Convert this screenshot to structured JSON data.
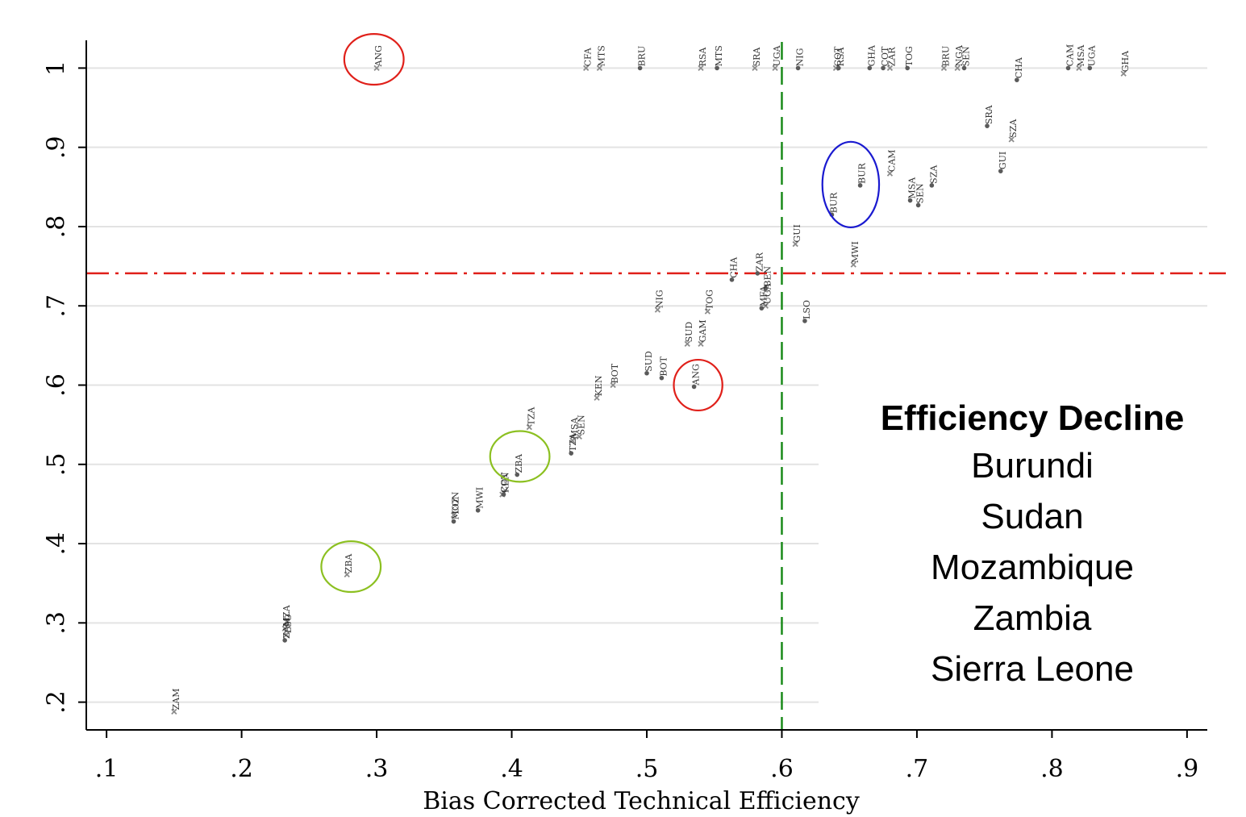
{
  "chart_data": {
    "type": "scatter",
    "xlabel": "Bias Corrected  Technical Efficiency",
    "ylabel": "",
    "xlim": [
      0.085,
      0.915
    ],
    "ylim": [
      0.165,
      1.035
    ],
    "x_ticks": [
      0.1,
      0.2,
      0.3,
      0.4,
      0.5,
      0.6,
      0.7,
      0.8,
      0.9
    ],
    "x_tick_labels": [
      ".1",
      ".2",
      ".3",
      ".4",
      ".5",
      ".6",
      ".7",
      ".8",
      ".9"
    ],
    "y_ticks": [
      0.2,
      0.3,
      0.4,
      0.5,
      0.6,
      0.7,
      0.8,
      0.9,
      1.0
    ],
    "y_tick_labels": [
      ".2",
      ".3",
      ".4",
      ".5",
      ".6",
      ".7",
      ".8",
      ".9",
      "1"
    ],
    "grid": "horizontal",
    "reference_lines": [
      {
        "orientation": "vertical",
        "value": 0.6,
        "color": "#1a8a1a",
        "style": "dashed"
      },
      {
        "orientation": "horizontal",
        "value": 0.741,
        "color": "#e0201a",
        "style": "dash-dot"
      }
    ],
    "series": [
      {
        "marker": "x",
        "color": "#8c8c8c",
        "points": [
          {
            "x": 0.3,
            "y": 1.0,
            "label": "ANG"
          },
          {
            "x": 0.455,
            "y": 1.0,
            "label": "CFA"
          },
          {
            "x": 0.465,
            "y": 1.0,
            "label": "MTS"
          },
          {
            "x": 0.54,
            "y": 1.0,
            "label": "RSA"
          },
          {
            "x": 0.58,
            "y": 1.0,
            "label": "SRA"
          },
          {
            "x": 0.595,
            "y": 1.0,
            "label": "UGA"
          },
          {
            "x": 0.68,
            "y": 1.0,
            "label": "ZAR"
          },
          {
            "x": 0.73,
            "y": 1.0,
            "label": "NGA"
          },
          {
            "x": 0.64,
            "y": 1.0,
            "label": "COT"
          },
          {
            "x": 0.72,
            "y": 1.0,
            "label": "BRU"
          },
          {
            "x": 0.82,
            "y": 1.0,
            "label": "MSA"
          },
          {
            "x": 0.853,
            "y": 0.993,
            "label": "GHA"
          },
          {
            "x": 0.77,
            "y": 0.91,
            "label": "SZA"
          },
          {
            "x": 0.68,
            "y": 0.867,
            "label": "CAM"
          },
          {
            "x": 0.61,
            "y": 0.778,
            "label": "GUI"
          },
          {
            "x": 0.653,
            "y": 0.752,
            "label": "MWI"
          },
          {
            "x": 0.508,
            "y": 0.695,
            "label": "NIG"
          },
          {
            "x": 0.545,
            "y": 0.693,
            "label": "TOG"
          },
          {
            "x": 0.54,
            "y": 0.652,
            "label": "GAM"
          },
          {
            "x": 0.53,
            "y": 0.652,
            "label": "SUD"
          },
          {
            "x": 0.588,
            "y": 0.7,
            "label": "UGA"
          },
          {
            "x": 0.475,
            "y": 0.6,
            "label": "BOT"
          },
          {
            "x": 0.463,
            "y": 0.584,
            "label": "KEN"
          },
          {
            "x": 0.413,
            "y": 0.547,
            "label": "TZA"
          },
          {
            "x": 0.45,
            "y": 0.535,
            "label": "SEN"
          },
          {
            "x": 0.445,
            "y": 0.53,
            "label": "MSA"
          },
          {
            "x": 0.393,
            "y": 0.462,
            "label": "COT"
          },
          {
            "x": 0.357,
            "y": 0.436,
            "label": "CON"
          },
          {
            "x": 0.278,
            "y": 0.361,
            "label": "ZBA"
          },
          {
            "x": 0.232,
            "y": 0.293,
            "label": "MZA"
          },
          {
            "x": 0.233,
            "y": 0.285,
            "label": "LSO"
          },
          {
            "x": 0.15,
            "y": 0.188,
            "label": "ZAM"
          }
        ]
      },
      {
        "marker": "dot",
        "color": "#5a5a5a",
        "points": [
          {
            "x": 0.495,
            "y": 1.0,
            "label": "BRU"
          },
          {
            "x": 0.552,
            "y": 1.0,
            "label": "MTS"
          },
          {
            "x": 0.612,
            "y": 1.0,
            "label": "NIG"
          },
          {
            "x": 0.642,
            "y": 1.0,
            "label": "RSA"
          },
          {
            "x": 0.665,
            "y": 1.0,
            "label": "GHA"
          },
          {
            "x": 0.675,
            "y": 1.0,
            "label": "COT"
          },
          {
            "x": 0.693,
            "y": 1.0,
            "label": "TOG"
          },
          {
            "x": 0.735,
            "y": 1.0,
            "label": "SEN"
          },
          {
            "x": 0.812,
            "y": 1.0,
            "label": "CAM"
          },
          {
            "x": 0.828,
            "y": 1.0,
            "label": "UGA"
          },
          {
            "x": 0.774,
            "y": 0.985,
            "label": "CHA"
          },
          {
            "x": 0.752,
            "y": 0.927,
            "label": "SRA"
          },
          {
            "x": 0.762,
            "y": 0.87,
            "label": "GUI"
          },
          {
            "x": 0.658,
            "y": 0.852,
            "label": "BUR"
          },
          {
            "x": 0.711,
            "y": 0.852,
            "label": "SZA"
          },
          {
            "x": 0.695,
            "y": 0.833,
            "label": "MSA"
          },
          {
            "x": 0.701,
            "y": 0.827,
            "label": "SEN"
          },
          {
            "x": 0.637,
            "y": 0.815,
            "label": "BUR"
          },
          {
            "x": 0.563,
            "y": 0.733,
            "label": "CHA"
          },
          {
            "x": 0.582,
            "y": 0.741,
            "label": "ZAR"
          },
          {
            "x": 0.588,
            "y": 0.722,
            "label": "BEN"
          },
          {
            "x": 0.585,
            "y": 0.697,
            "label": "MFA"
          },
          {
            "x": 0.617,
            "y": 0.681,
            "label": "LSO"
          },
          {
            "x": 0.5,
            "y": 0.615,
            "label": "SUD"
          },
          {
            "x": 0.511,
            "y": 0.609,
            "label": "BOT"
          },
          {
            "x": 0.535,
            "y": 0.598,
            "label": "ANG"
          },
          {
            "x": 0.444,
            "y": 0.514,
            "label": "TZA"
          },
          {
            "x": 0.404,
            "y": 0.487,
            "label": "ZBA"
          },
          {
            "x": 0.394,
            "y": 0.462,
            "label": "KEN"
          },
          {
            "x": 0.375,
            "y": 0.442,
            "label": "MWI"
          },
          {
            "x": 0.357,
            "y": 0.428,
            "label": "MOZ"
          },
          {
            "x": 0.232,
            "y": 0.278,
            "label": "ZAM"
          }
        ]
      }
    ],
    "annotations": [
      {
        "shape": "ellipse",
        "x": 0.298,
        "y": 1.011,
        "rx": 0.022,
        "ry": 0.032,
        "color": "#e0201a"
      },
      {
        "shape": "ellipse",
        "x": 0.538,
        "y": 0.6,
        "rx": 0.018,
        "ry": 0.032,
        "color": "#e0201a"
      },
      {
        "shape": "ellipse",
        "x": 0.651,
        "y": 0.853,
        "rx": 0.021,
        "ry": 0.054,
        "color": "#1a1ad0"
      },
      {
        "shape": "ellipse",
        "x": 0.406,
        "y": 0.51,
        "rx": 0.022,
        "ry": 0.032,
        "color": "#8cc021"
      },
      {
        "shape": "ellipse",
        "x": 0.281,
        "y": 0.371,
        "rx": 0.022,
        "ry": 0.032,
        "color": "#8cc021"
      }
    ]
  },
  "legend": {
    "title": "Efficiency Decline",
    "items": [
      "Burundi",
      "Sudan",
      "Mozambique",
      "Zambia",
      "Sierra Leone"
    ]
  }
}
